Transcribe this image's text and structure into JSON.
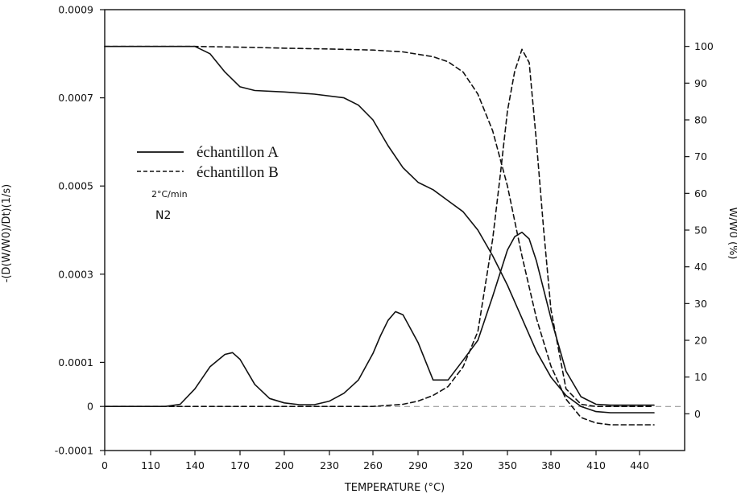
{
  "chart_data": {
    "type": "line",
    "xlabel": "TEMPERATURE (°C)",
    "x_ticks": [
      "0",
      "110",
      "140",
      "170",
      "200",
      "230",
      "260",
      "290",
      "320",
      "350",
      "380",
      "410",
      "440"
    ],
    "ylabel_left": "-(D(W/W0)/Dt)(1/s)",
    "y_left_ticks": [
      "0.0009",
      "0.0007",
      "0.0005",
      "0.0003",
      "0.0001",
      "0",
      "-0.0001"
    ],
    "y_left_values": [
      0.0009,
      0.0007,
      0.0005,
      0.0003,
      0.0001,
      0,
      -0.0001
    ],
    "ylim_left": [
      -0.0001,
      0.0009
    ],
    "ylabel_right": "W/W0 (%)",
    "y_right_ticks": [
      "100",
      "90",
      "80",
      "70",
      "60",
      "50",
      "40",
      "30",
      "20",
      "10",
      "0"
    ],
    "ylim_right": [
      -10,
      110
    ],
    "annotation_rate": "2°C/min",
    "annotation_gas": "N2",
    "legend": [
      {
        "label": "échantillon A",
        "style": "solid"
      },
      {
        "label": "échantillon B",
        "style": "dashed"
      }
    ],
    "series": [
      {
        "name": "échantillon A",
        "kind": "weight",
        "axis": "right",
        "style": "solid",
        "x": [
          0,
          110,
          130,
          140,
          150,
          160,
          170,
          180,
          200,
          220,
          240,
          250,
          260,
          270,
          280,
          290,
          300,
          310,
          320,
          330,
          340,
          350,
          360,
          370,
          380,
          390,
          400,
          410,
          420,
          440,
          450
        ],
        "y": [
          100,
          100,
          100,
          100,
          98,
          93,
          89,
          88,
          87.6,
          87,
          86,
          84,
          80,
          73,
          67,
          63,
          61,
          58,
          55,
          50,
          43,
          35,
          26,
          17,
          10,
          5,
          2,
          0.6,
          0.3,
          0.3,
          0.3
        ]
      },
      {
        "name": "échantillon A",
        "kind": "derivative",
        "axis": "left",
        "style": "solid",
        "x": [
          0,
          120,
          130,
          140,
          150,
          160,
          165,
          170,
          180,
          190,
          200,
          210,
          220,
          230,
          240,
          250,
          260,
          265,
          270,
          275,
          280,
          290,
          300,
          310,
          320,
          330,
          340,
          350,
          355,
          360,
          365,
          370,
          380,
          390,
          400,
          410,
          420,
          440,
          450
        ],
        "y": [
          0,
          0,
          5e-06,
          4e-05,
          9e-05,
          0.000118,
          0.000122,
          0.000107,
          5e-05,
          1.8e-05,
          8e-06,
          4e-06,
          4e-06,
          1.2e-05,
          3e-05,
          6e-05,
          0.00012,
          0.00016,
          0.000195,
          0.000215,
          0.000208,
          0.000145,
          6e-05,
          6e-05,
          0.000105,
          0.00015,
          0.00025,
          0.000355,
          0.000385,
          0.000395,
          0.00038,
          0.00033,
          0.0002,
          8e-05,
          2.2e-05,
          5e-06,
          3e-06,
          3e-06,
          3e-06
        ]
      },
      {
        "name": "échantillon B",
        "kind": "weight",
        "axis": "right",
        "style": "dashed",
        "x": [
          0,
          110,
          140,
          170,
          200,
          230,
          260,
          280,
          300,
          310,
          320,
          330,
          340,
          350,
          360,
          370,
          380,
          390,
          400,
          410,
          420,
          440,
          450
        ],
        "y": [
          100,
          100,
          100,
          99.8,
          99.5,
          99.3,
          99,
          98.5,
          97.2,
          95.8,
          93,
          87,
          77,
          62,
          43,
          26,
          13,
          4,
          -1,
          -2.5,
          -3,
          -3,
          -3
        ]
      },
      {
        "name": "échantillon B",
        "kind": "derivative",
        "axis": "left",
        "style": "dashed",
        "x": [
          0,
          260,
          280,
          290,
          300,
          310,
          320,
          330,
          340,
          345,
          350,
          355,
          360,
          365,
          370,
          375,
          380,
          390,
          400,
          410,
          420,
          440,
          450
        ],
        "y": [
          0,
          0,
          5e-06,
          1.2e-05,
          2.5e-05,
          4.5e-05,
          9e-05,
          0.00017,
          0.00038,
          0.00052,
          0.00067,
          0.00076,
          0.00081,
          0.00078,
          0.0006,
          0.0004,
          0.00022,
          4e-05,
          5e-06,
          0,
          0,
          0,
          0
        ]
      }
    ],
    "zero_reference_line": true,
    "grid": false,
    "legend_position": "upper-left"
  }
}
